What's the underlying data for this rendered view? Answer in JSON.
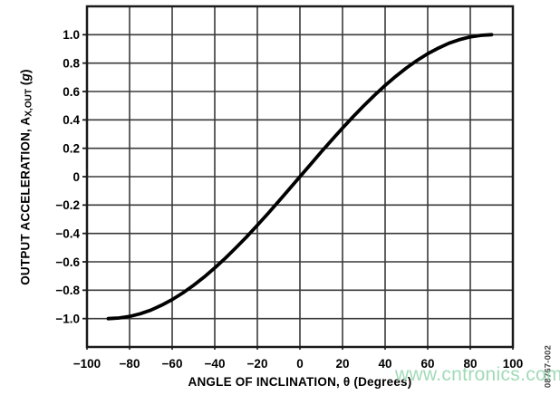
{
  "figure_code": "08767-002",
  "watermark": {
    "text": "www.cntronics.com",
    "color": "#97d7af"
  },
  "colors": {
    "curve": "#000000",
    "grid": "#3a3a3a",
    "border": "#1a1a1a",
    "text": "#000000",
    "code_text": "#404040",
    "background": "#ffffff"
  },
  "chart_data": {
    "type": "line",
    "title": "",
    "xlabel": "ANGLE OF INCLINATION, θ (Degrees)",
    "ylabel": {
      "main": "OUTPUT ACCELERATION, A",
      "sub": "X,OUT",
      "unit_prefix": " (",
      "unit_italic": "g",
      "unit_suffix": ")"
    },
    "xlim": [
      -100,
      100
    ],
    "ylim": [
      -1.2,
      1.2
    ],
    "grid": true,
    "legend": "none",
    "xticks": {
      "values": [
        -100,
        -80,
        -60,
        -40,
        -20,
        0,
        20,
        40,
        60,
        80,
        100
      ],
      "labels": [
        "−100",
        "−80",
        "−60",
        "−40",
        "−20",
        "0",
        "20",
        "40",
        "60",
        "80",
        "100"
      ]
    },
    "yticks": {
      "values": [
        1.0,
        0.8,
        0.6,
        0.4,
        0.2,
        0,
        -0.2,
        -0.4,
        -0.6,
        -0.8,
        -1.0
      ],
      "labels": [
        "1.0",
        "0.8",
        "0.6",
        "0.4",
        "0.2",
        "0",
        "−0.2",
        "−0.4",
        "−0.6",
        "−0.8",
        "−1.0"
      ]
    },
    "series": [
      {
        "points": [
          [
            -90,
            -1.0
          ],
          [
            -85,
            -0.996
          ],
          [
            -80,
            -0.985
          ],
          [
            -75,
            -0.966
          ],
          [
            -70,
            -0.94
          ],
          [
            -65,
            -0.906
          ],
          [
            -60,
            -0.866
          ],
          [
            -55,
            -0.819
          ],
          [
            -50,
            -0.766
          ],
          [
            -45,
            -0.707
          ],
          [
            -40,
            -0.643
          ],
          [
            -35,
            -0.574
          ],
          [
            -30,
            -0.5
          ],
          [
            -25,
            -0.423
          ],
          [
            -20,
            -0.342
          ],
          [
            -15,
            -0.259
          ],
          [
            -10,
            -0.174
          ],
          [
            -5,
            -0.087
          ],
          [
            0,
            0.0
          ],
          [
            5,
            0.087
          ],
          [
            10,
            0.174
          ],
          [
            15,
            0.259
          ],
          [
            20,
            0.342
          ],
          [
            25,
            0.423
          ],
          [
            30,
            0.5
          ],
          [
            35,
            0.574
          ],
          [
            40,
            0.643
          ],
          [
            45,
            0.707
          ],
          [
            50,
            0.766
          ],
          [
            55,
            0.819
          ],
          [
            60,
            0.866
          ],
          [
            65,
            0.906
          ],
          [
            70,
            0.94
          ],
          [
            75,
            0.966
          ],
          [
            80,
            0.985
          ],
          [
            85,
            0.996
          ],
          [
            90,
            1.0
          ]
        ]
      }
    ]
  }
}
